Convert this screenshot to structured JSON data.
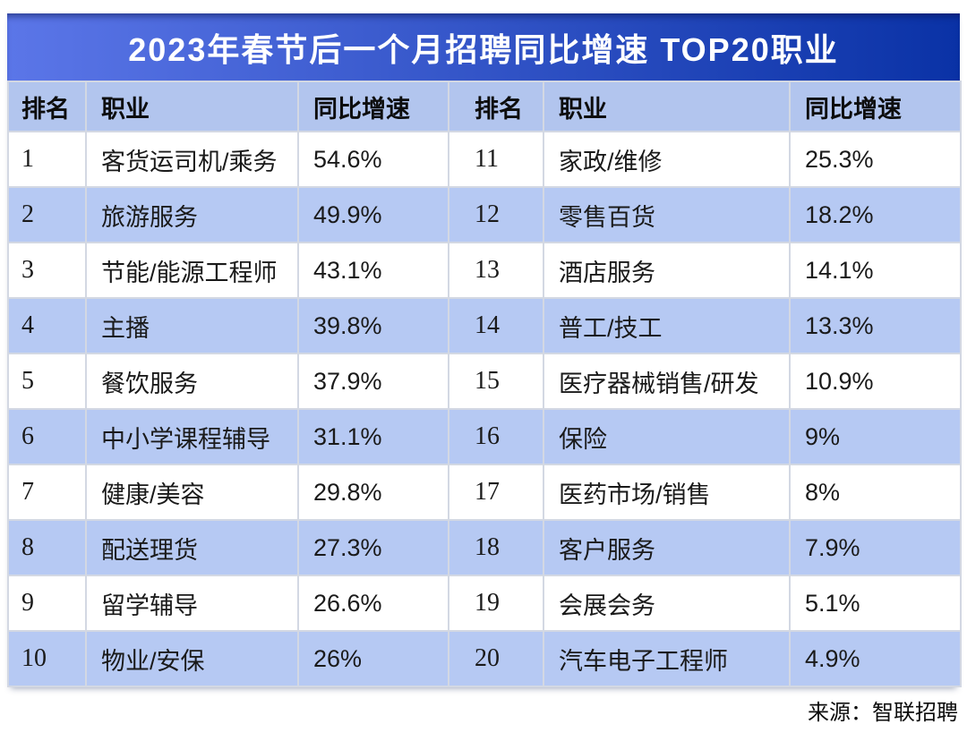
{
  "title": "2023年春节后一个月招聘同比增速 TOP20职业",
  "source": "来源：智联招聘",
  "header": {
    "rank": "排名",
    "occupation": "职业",
    "growth": "同比增速"
  },
  "left_rows": [
    {
      "rank": "1",
      "occupation": "客货运司机/乘务",
      "growth": "54.6%"
    },
    {
      "rank": "2",
      "occupation": "旅游服务",
      "growth": "49.9%"
    },
    {
      "rank": "3",
      "occupation": "节能/能源工程师",
      "growth": "43.1%"
    },
    {
      "rank": "4",
      "occupation": "主播",
      "growth": "39.8%"
    },
    {
      "rank": "5",
      "occupation": "餐饮服务",
      "growth": "37.9%"
    },
    {
      "rank": "6",
      "occupation": "中小学课程辅导",
      "growth": "31.1%"
    },
    {
      "rank": "7",
      "occupation": "健康/美容",
      "growth": "29.8%"
    },
    {
      "rank": "8",
      "occupation": "配送理货",
      "growth": "27.3%"
    },
    {
      "rank": "9",
      "occupation": "留学辅导",
      "growth": "26.6%"
    },
    {
      "rank": "10",
      "occupation": "物业/安保",
      "growth": "26%"
    }
  ],
  "right_rows": [
    {
      "rank": "11",
      "occupation": "家政/维修",
      "growth": "25.3%"
    },
    {
      "rank": "12",
      "occupation": "零售百货",
      "growth": "18.2%"
    },
    {
      "rank": "13",
      "occupation": "酒店服务",
      "growth": "14.1%"
    },
    {
      "rank": "14",
      "occupation": "普工/技工",
      "growth": "13.3%"
    },
    {
      "rank": "15",
      "occupation": "医疗器械销售/研发",
      "growth": "10.9%"
    },
    {
      "rank": "16",
      "occupation": "保险",
      "growth": "9%"
    },
    {
      "rank": "17",
      "occupation": "医药市场/销售",
      "growth": "8%"
    },
    {
      "rank": "18",
      "occupation": "客户服务",
      "growth": "7.9%"
    },
    {
      "rank": "19",
      "occupation": "会展会务",
      "growth": "5.1%"
    },
    {
      "rank": "20",
      "occupation": "汽车电子工程师",
      "growth": "4.9%"
    }
  ],
  "colors": {
    "title_grad_left": "#5b76e8",
    "title_grad_right": "#0a32a6",
    "title_text": "#ffffff",
    "header_bg": "#b2c5ee",
    "stripe_bg": "#b6c9f3",
    "row_bg": "#ffffff",
    "border": "#d3d8e3",
    "text": "#1a1a1a"
  },
  "chart_data": {
    "type": "table",
    "title": "2023年春节后一个月招聘同比增速 TOP20职业",
    "columns": [
      "排名",
      "职业",
      "同比增速"
    ],
    "rows": [
      [
        1,
        "客货运司机/乘务",
        54.6
      ],
      [
        2,
        "旅游服务",
        49.9
      ],
      [
        3,
        "节能/能源工程师",
        43.1
      ],
      [
        4,
        "主播",
        39.8
      ],
      [
        5,
        "餐饮服务",
        37.9
      ],
      [
        6,
        "中小学课程辅导",
        31.1
      ],
      [
        7,
        "健康/美容",
        29.8
      ],
      [
        8,
        "配送理货",
        27.3
      ],
      [
        9,
        "留学辅导",
        26.6
      ],
      [
        10,
        "物业/安保",
        26
      ],
      [
        11,
        "家政/维修",
        25.3
      ],
      [
        12,
        "零售百货",
        18.2
      ],
      [
        13,
        "酒店服务",
        14.1
      ],
      [
        14,
        "普工/技工",
        13.3
      ],
      [
        15,
        "医疗器械销售/研发",
        10.9
      ],
      [
        16,
        "保险",
        9
      ],
      [
        17,
        "医药市场/销售",
        8
      ],
      [
        18,
        "客户服务",
        7.9
      ],
      [
        19,
        "会展会务",
        5.1
      ],
      [
        20,
        "汽车电子工程师",
        4.9
      ]
    ],
    "unit": "%",
    "source": "智联招聘",
    "layout": "split two-panel table: ranks 1-10 in left panel, ranks 11-20 in right panel; alternating row striping (odd white, even light blue); gradient title banner"
  }
}
